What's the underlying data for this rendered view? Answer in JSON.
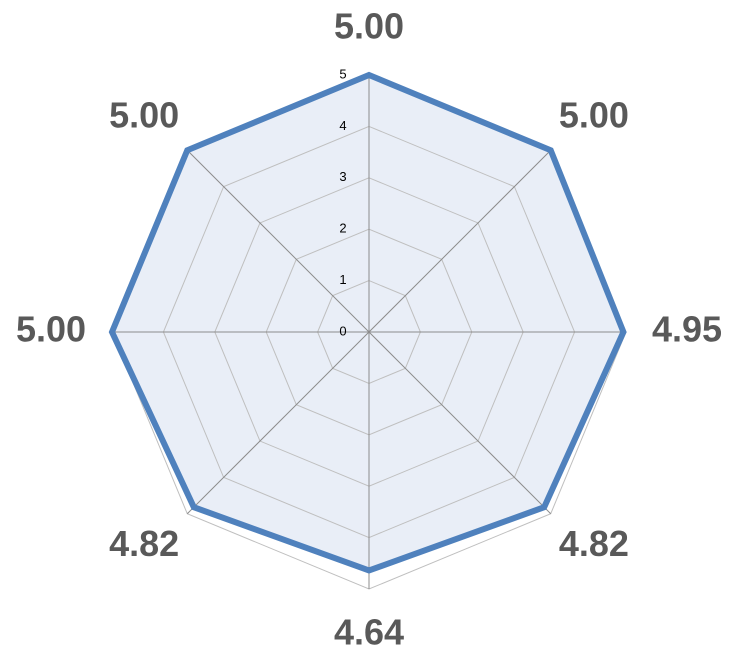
{
  "chart_data": {
    "type": "radar",
    "values": [
      5,
      5,
      4.95,
      4.82,
      4.64,
      4.82,
      5,
      5
    ],
    "value_labels": [
      "5.00",
      "5.00",
      "4.95",
      "4.82",
      "4.64",
      "4.82",
      "5.00",
      "5.00"
    ],
    "color": "#4f81bd",
    "ylim": [
      0,
      5
    ],
    "yticks": [
      0,
      1,
      2,
      3,
      4,
      5
    ],
    "grid": true
  }
}
